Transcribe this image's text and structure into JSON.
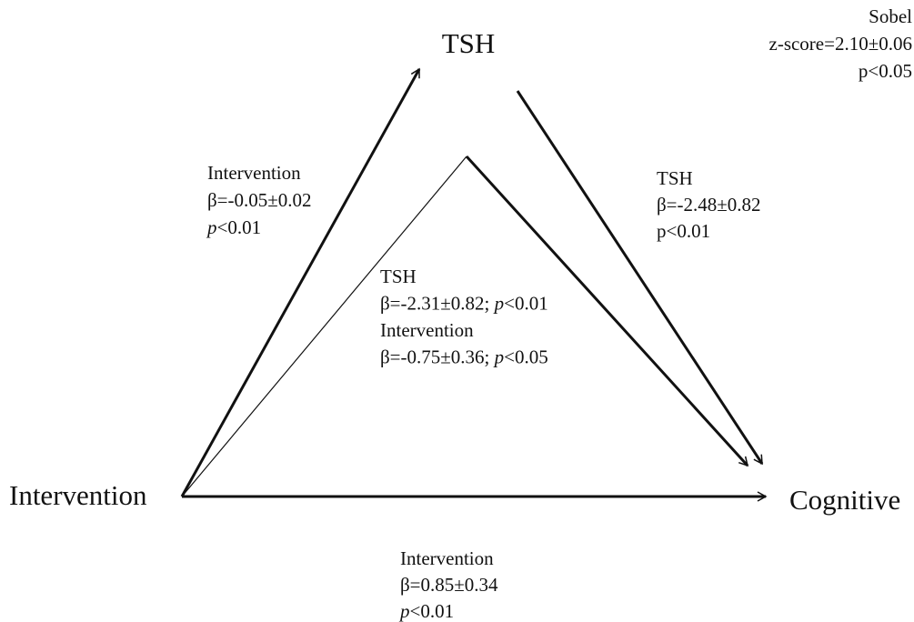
{
  "nodes": [
    {
      "label": "TSH"
    },
    {
      "label": "Intervention"
    },
    {
      "label": "Cognitive"
    }
  ],
  "sobel": [
    [
      {
        "text": "Sobel"
      }
    ],
    [
      {
        "text": "z-score=2.10±0.06"
      }
    ],
    [
      {
        "text": "p<0.05"
      }
    ]
  ],
  "edge_labels": [
    {
      "lines": [
        [
          {
            "text": "Intervention"
          }
        ],
        [
          {
            "text": "β=-0.05±0.02"
          }
        ],
        [
          {
            "text": "p",
            "italic": true
          },
          {
            "text": "<0.01"
          }
        ]
      ]
    },
    {
      "lines": [
        [
          {
            "text": "TSH"
          }
        ],
        [
          {
            "text": "β=-2.48±0.82"
          }
        ],
        [
          {
            "text": "p<0.01"
          }
        ]
      ]
    },
    {
      "lines": [
        [
          {
            "text": "TSH"
          }
        ],
        [
          {
            "text": "β=-2.31±0.82; "
          },
          {
            "text": "p",
            "italic": true
          },
          {
            "text": "<0.01"
          }
        ],
        [
          {
            "text": "Intervention"
          }
        ],
        [
          {
            "text": "β=-0.75±0.36; "
          },
          {
            "text": "p",
            "italic": true
          },
          {
            "text": "<0.05"
          }
        ]
      ]
    },
    {
      "lines": [
        [
          {
            "text": "Intervention"
          }
        ],
        [
          {
            "text": "β=0.85±0.34"
          }
        ],
        [
          {
            "text": "p",
            "italic": true
          },
          {
            "text": "<0.01"
          }
        ]
      ]
    }
  ]
}
